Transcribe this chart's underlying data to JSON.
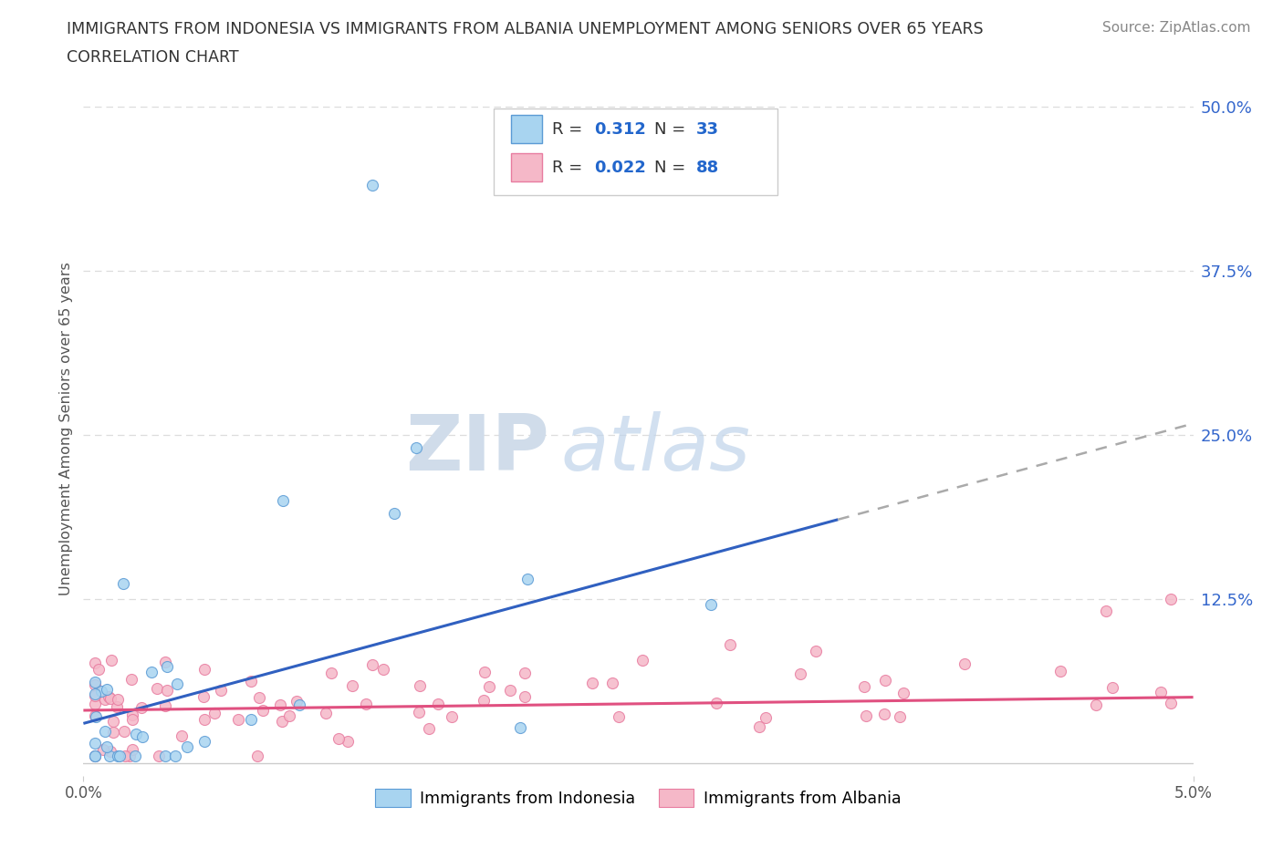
{
  "title_line1": "IMMIGRANTS FROM INDONESIA VS IMMIGRANTS FROM ALBANIA UNEMPLOYMENT AMONG SENIORS OVER 65 YEARS",
  "title_line2": "CORRELATION CHART",
  "source": "Source: ZipAtlas.com",
  "ylabel": "Unemployment Among Seniors over 65 years",
  "xmin": 0.0,
  "xmax": 0.05,
  "ymin": -0.01,
  "ymax": 0.52,
  "yticks": [
    0.0,
    0.125,
    0.25,
    0.375,
    0.5
  ],
  "ytick_labels": [
    "",
    "12.5%",
    "25.0%",
    "37.5%",
    "50.0%"
  ],
  "r_indonesia": 0.312,
  "n_indonesia": 33,
  "r_albania": 0.022,
  "n_albania": 88,
  "color_indonesia_fill": "#a8d4f0",
  "color_albania_fill": "#f5b8c8",
  "color_indonesia_edge": "#5b9bd5",
  "color_albania_edge": "#e87ca0",
  "color_indonesia_line": "#3060c0",
  "color_albania_line": "#e05080",
  "legend_label_indonesia": "Immigrants from Indonesia",
  "legend_label_albania": "Immigrants from Albania",
  "watermark_zip": "ZIP",
  "watermark_atlas": "atlas",
  "legend_text_color": "#2266cc",
  "legend_label_color": "#333333",
  "grid_color": "#dddddd",
  "axis_color": "#cccccc",
  "title_color": "#333333",
  "source_color": "#888888",
  "ylabel_color": "#555555",
  "tick_label_color": "#555555",
  "right_tick_color": "#3366cc"
}
